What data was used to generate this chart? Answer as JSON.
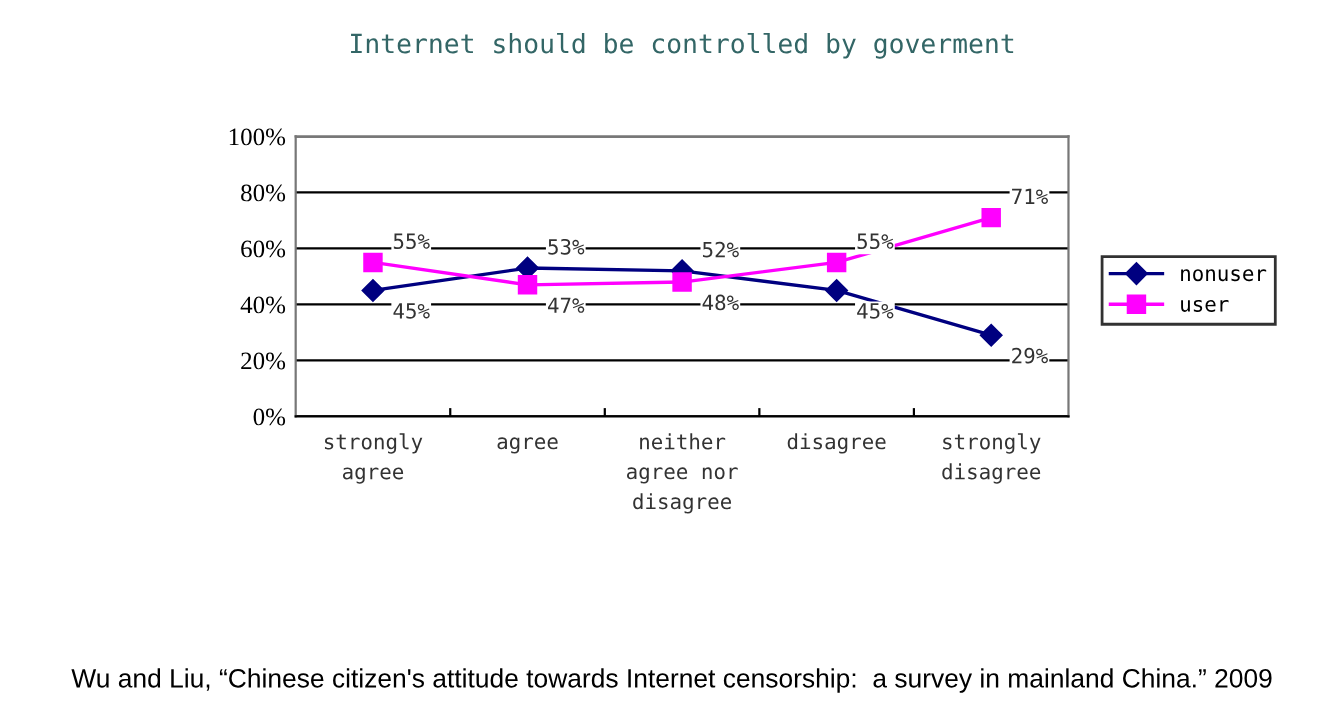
{
  "chart_data": {
    "type": "line",
    "title": "Internet should be controlled by goverment",
    "categories": [
      "strongly\nagree",
      "agree",
      "neither\nagree nor\ndisagree",
      "disagree",
      "strongly\ndisagree"
    ],
    "series": [
      {
        "name": "nonuser",
        "color": "#000080",
        "marker": "diamond",
        "values": [
          45,
          53,
          52,
          45,
          29
        ],
        "value_labels": [
          "45%",
          "53%",
          "52%",
          "45%",
          "29%"
        ]
      },
      {
        "name": "user",
        "color": "#ff00ff",
        "marker": "square",
        "values": [
          55,
          47,
          48,
          55,
          71
        ],
        "value_labels": [
          "55%",
          "47%",
          "48%",
          "55%",
          "71%"
        ]
      }
    ],
    "ylim": [
      0,
      100
    ],
    "yticks": [
      {
        "value": 0,
        "label": "0%"
      },
      {
        "value": 20,
        "label": "20%"
      },
      {
        "value": 40,
        "label": "40%"
      },
      {
        "value": 60,
        "label": "60%"
      },
      {
        "value": 80,
        "label": "80%"
      },
      {
        "value": 100,
        "label": "100%"
      }
    ],
    "grid": "y",
    "legend": "right",
    "annotations": [
      "Wu and Liu, “Chinese citizen's attitude towards Internet censorship:  a survey in mainland China.” 2009"
    ]
  }
}
